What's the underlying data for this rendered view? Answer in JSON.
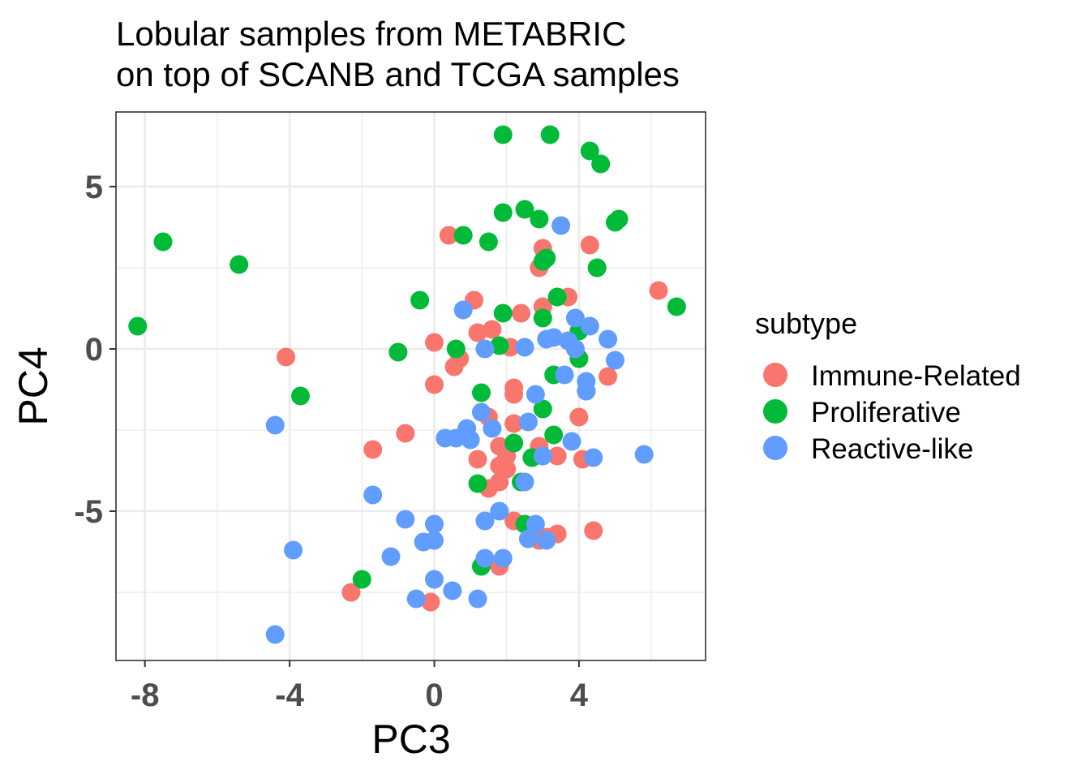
{
  "chart_data": {
    "type": "scatter",
    "title_lines": [
      "Lobular samples from METABRIC",
      "on top of SCANB and TCGA samples"
    ],
    "xlabel": "PC3",
    "ylabel": "PC4",
    "xlim": [
      -8.8,
      7.5
    ],
    "ylim": [
      -9.6,
      7.3
    ],
    "x_ticks": [
      -8,
      -4,
      0,
      4
    ],
    "x_tick_labels": [
      "-8",
      "-4",
      "0",
      "4"
    ],
    "y_ticks": [
      -5,
      0,
      5
    ],
    "y_tick_labels": [
      "-5",
      "0",
      "5"
    ],
    "grid": true,
    "legend": {
      "title": "subtype",
      "placement": "right",
      "entries": [
        "Immune-Related",
        "Proliferative",
        "Reactive-like"
      ]
    },
    "series": [
      {
        "name": "Immune-Related",
        "color": "#F8766D",
        "points": [
          [
            0.4,
            3.5
          ],
          [
            3.0,
            3.1
          ],
          [
            4.3,
            3.2
          ],
          [
            2.9,
            2.5
          ],
          [
            6.2,
            1.8
          ],
          [
            1.1,
            1.5
          ],
          [
            3.7,
            1.6
          ],
          [
            2.4,
            1.1
          ],
          [
            3.0,
            1.3
          ],
          [
            1.2,
            0.5
          ],
          [
            1.6,
            0.6
          ],
          [
            0.0,
            0.2
          ],
          [
            0.7,
            -0.3
          ],
          [
            0.55,
            -0.55
          ],
          [
            2.1,
            0.05
          ],
          [
            4.8,
            -0.85
          ],
          [
            -4.1,
            -0.25
          ],
          [
            0.0,
            -1.1
          ],
          [
            2.2,
            -1.2
          ],
          [
            2.2,
            -1.4
          ],
          [
            1.5,
            -2.1
          ],
          [
            2.2,
            -2.3
          ],
          [
            4.0,
            -2.1
          ],
          [
            -0.8,
            -2.6
          ],
          [
            -1.7,
            -3.1
          ],
          [
            1.8,
            -3.0
          ],
          [
            2.0,
            -3.3
          ],
          [
            2.9,
            -3.0
          ],
          [
            3.4,
            -3.3
          ],
          [
            4.1,
            -3.4
          ],
          [
            1.2,
            -3.4
          ],
          [
            1.8,
            -3.6
          ],
          [
            2.0,
            -3.7
          ],
          [
            1.8,
            -4.1
          ],
          [
            1.5,
            -4.3
          ],
          [
            2.2,
            -5.3
          ],
          [
            2.9,
            -5.9
          ],
          [
            3.1,
            -5.8
          ],
          [
            3.4,
            -5.7
          ],
          [
            4.4,
            -5.6
          ],
          [
            1.8,
            -6.7
          ],
          [
            -2.3,
            -7.5
          ],
          [
            -0.1,
            -7.8
          ]
        ]
      },
      {
        "name": "Proliferative",
        "color": "#00BA38",
        "points": [
          [
            1.9,
            6.6
          ],
          [
            3.2,
            6.6
          ],
          [
            4.3,
            6.1
          ],
          [
            4.6,
            5.7
          ],
          [
            1.9,
            4.2
          ],
          [
            2.5,
            4.3
          ],
          [
            2.9,
            4.0
          ],
          [
            5.0,
            3.9
          ],
          [
            5.1,
            4.0
          ],
          [
            0.8,
            3.5
          ],
          [
            1.5,
            3.3
          ],
          [
            -7.5,
            3.3
          ],
          [
            -5.4,
            2.6
          ],
          [
            3.0,
            2.7
          ],
          [
            3.1,
            2.8
          ],
          [
            4.5,
            2.5
          ],
          [
            -0.4,
            1.5
          ],
          [
            3.4,
            1.6
          ],
          [
            6.7,
            1.3
          ],
          [
            1.9,
            1.1
          ],
          [
            3.0,
            0.95
          ],
          [
            4.0,
            0.55
          ],
          [
            -8.2,
            0.7
          ],
          [
            0.6,
            0.0
          ],
          [
            1.8,
            0.1
          ],
          [
            -1.0,
            -0.1
          ],
          [
            4.0,
            -0.3
          ],
          [
            3.3,
            -0.8
          ],
          [
            1.3,
            -1.35
          ],
          [
            4.2,
            -1.3
          ],
          [
            -3.7,
            -1.45
          ],
          [
            3.0,
            -1.85
          ],
          [
            2.2,
            -2.9
          ],
          [
            3.3,
            -2.65
          ],
          [
            2.7,
            -3.35
          ],
          [
            1.2,
            -4.15
          ],
          [
            2.4,
            -4.1
          ],
          [
            2.5,
            -5.4
          ],
          [
            -2.0,
            -7.1
          ],
          [
            1.3,
            -6.7
          ]
        ]
      },
      {
        "name": "Reactive-like",
        "color": "#619CFF",
        "points": [
          [
            3.5,
            3.8
          ],
          [
            0.8,
            1.2
          ],
          [
            3.9,
            0.95
          ],
          [
            4.3,
            0.7
          ],
          [
            4.8,
            0.3
          ],
          [
            3.1,
            0.3
          ],
          [
            3.3,
            0.35
          ],
          [
            3.7,
            0.25
          ],
          [
            2.5,
            0.05
          ],
          [
            1.4,
            0.0
          ],
          [
            3.9,
            0.0
          ],
          [
            5.0,
            -0.35
          ],
          [
            3.6,
            -0.8
          ],
          [
            4.2,
            -1.0
          ],
          [
            4.2,
            -1.3
          ],
          [
            2.8,
            -1.4
          ],
          [
            1.3,
            -1.95
          ],
          [
            -4.4,
            -2.35
          ],
          [
            2.6,
            -2.25
          ],
          [
            1.6,
            -2.45
          ],
          [
            0.9,
            -2.45
          ],
          [
            0.3,
            -2.75
          ],
          [
            0.6,
            -2.75
          ],
          [
            1.0,
            -2.8
          ],
          [
            3.8,
            -2.85
          ],
          [
            3.0,
            -3.3
          ],
          [
            4.4,
            -3.35
          ],
          [
            5.8,
            -3.25
          ],
          [
            2.5,
            -4.1
          ],
          [
            -1.7,
            -4.5
          ],
          [
            1.8,
            -5.0
          ],
          [
            1.4,
            -5.3
          ],
          [
            -0.8,
            -5.25
          ],
          [
            0.0,
            -5.4
          ],
          [
            2.8,
            -5.4
          ],
          [
            2.6,
            -5.85
          ],
          [
            3.1,
            -5.9
          ],
          [
            -0.3,
            -5.95
          ],
          [
            0.0,
            -5.9
          ],
          [
            -3.9,
            -6.2
          ],
          [
            -1.2,
            -6.4
          ],
          [
            1.4,
            -6.45
          ],
          [
            1.9,
            -6.45
          ],
          [
            0.0,
            -7.1
          ],
          [
            0.5,
            -7.45
          ],
          [
            -0.5,
            -7.7
          ],
          [
            1.2,
            -7.7
          ],
          [
            -4.4,
            -8.8
          ]
        ]
      }
    ]
  }
}
